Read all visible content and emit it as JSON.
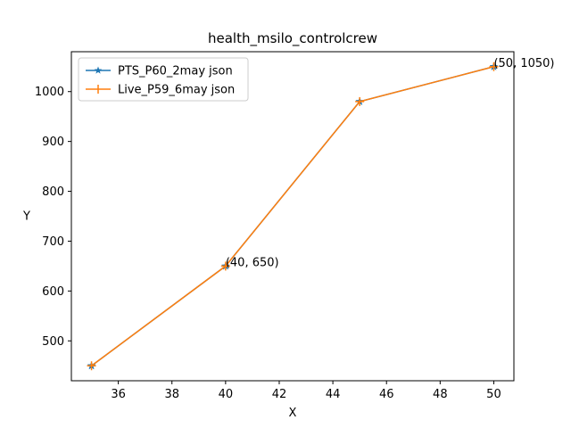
{
  "chart_data": {
    "type": "line",
    "title": "health_msilo_controlcrew",
    "xlabel": "X",
    "ylabel": "Y",
    "xlim": [
      34.25,
      50.75
    ],
    "ylim": [
      420,
      1080
    ],
    "xticks": [
      36,
      38,
      40,
      42,
      44,
      46,
      48,
      50
    ],
    "yticks": [
      500,
      600,
      700,
      800,
      900,
      1000
    ],
    "grid": false,
    "legend_position": "upper-left",
    "series": [
      {
        "name": "PTS_P60_2may json",
        "color": "#1f77b4",
        "marker": "star",
        "x": [
          35,
          40,
          45,
          50
        ],
        "y": [
          450,
          650,
          980,
          1050
        ]
      },
      {
        "name": "Live_P59_6may json",
        "color": "#ff7f0e",
        "marker": "plus",
        "x": [
          35,
          40,
          45,
          50
        ],
        "y": [
          450,
          650,
          980,
          1050
        ]
      }
    ],
    "annotations": [
      {
        "x": 40,
        "y": 650,
        "text": "(40, 650)"
      },
      {
        "x": 50,
        "y": 1050,
        "text": "(50, 1050)"
      }
    ]
  }
}
